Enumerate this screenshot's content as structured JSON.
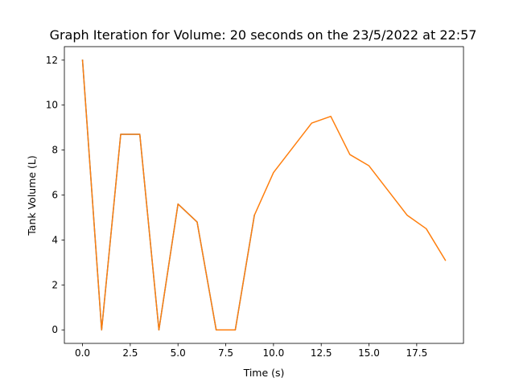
{
  "chart_data": {
    "type": "line",
    "title": "Graph Iteration for Volume: 20 seconds on the 23/5/2022 at 22:57",
    "xlabel": "Time (s)",
    "ylabel": "Tank Volume (L)",
    "xlim": [
      -0.95,
      19.95
    ],
    "ylim": [
      -0.6,
      12.6
    ],
    "xticks": [
      0.0,
      2.5,
      5.0,
      7.5,
      10.0,
      12.5,
      15.0,
      17.5
    ],
    "xtick_labels": [
      "0.0",
      "2.5",
      "5.0",
      "7.5",
      "10.0",
      "12.5",
      "15.0",
      "17.5"
    ],
    "yticks": [
      0,
      2,
      4,
      6,
      8,
      10,
      12
    ],
    "ytick_labels": [
      "0",
      "2",
      "4",
      "6",
      "8",
      "10",
      "12"
    ],
    "grid": false,
    "series": [
      {
        "color": "#1f77b4",
        "x": [
          0,
          1,
          2,
          3,
          4,
          5,
          6,
          7,
          8,
          9
        ],
        "y": [
          12.0,
          0.0,
          8.7,
          8.7,
          0.0,
          5.6,
          4.8,
          0.0,
          0.0,
          5.1
        ]
      },
      {
        "color": "#ff7f0e",
        "x": [
          0,
          1,
          2,
          3,
          4,
          5,
          6,
          7,
          8,
          9,
          10,
          11,
          12,
          13,
          14,
          15,
          16,
          17,
          18,
          19
        ],
        "y": [
          12.0,
          0.0,
          8.7,
          8.7,
          0.0,
          5.6,
          4.8,
          0.0,
          0.0,
          5.1,
          7.0,
          8.1,
          9.2,
          9.5,
          7.8,
          7.3,
          6.2,
          5.1,
          4.5,
          3.1
        ]
      }
    ]
  }
}
